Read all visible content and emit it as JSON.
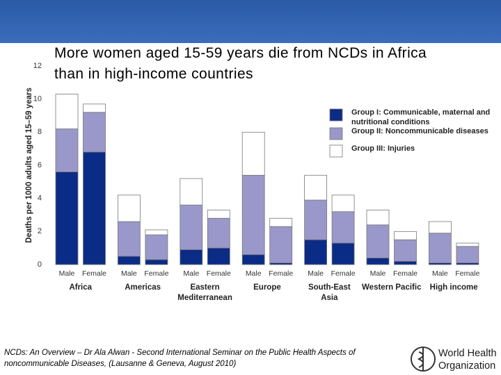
{
  "chart_data": {
    "type": "stacked-bar",
    "title": [
      "More women aged 15-59 years die from NCDs in Africa",
      "than in high-income countries"
    ],
    "ylabel": "Deaths per 1000 adults aged 15–59 years",
    "categories": [
      "Male",
      "Female",
      "Male",
      "Female",
      "Male",
      "Female",
      "Male",
      "Female",
      "Male",
      "Female",
      "Male",
      "Female",
      "Male",
      "Female"
    ],
    "groups": [
      [
        "Africa"
      ],
      [
        "Americas"
      ],
      [
        "Eastern",
        "Mediterranean"
      ],
      [
        "Europe"
      ],
      [
        "South-East",
        "Asia"
      ],
      [
        "Western Pacific"
      ],
      [
        "High income"
      ]
    ],
    "series": [
      {
        "name": "Group I: Communicable, maternal and nutritional conditions",
        "color": "#0b2c86",
        "values": [
          5.6,
          6.8,
          0.5,
          0.3,
          0.9,
          1.0,
          0.6,
          0.1,
          1.5,
          1.3,
          0.4,
          0.2,
          0.1,
          0.1
        ]
      },
      {
        "name": "Group II: Noncommunicable diseases",
        "color": "#9a98ca",
        "values": [
          2.6,
          2.4,
          2.1,
          1.5,
          2.7,
          1.8,
          4.8,
          2.2,
          2.4,
          1.9,
          2.0,
          1.3,
          1.8,
          1.0
        ]
      },
      {
        "name": "Group III: Injuries",
        "color": "#ffffff",
        "values": [
          2.1,
          0.5,
          1.6,
          0.3,
          1.6,
          0.5,
          2.6,
          0.5,
          1.5,
          1.0,
          0.9,
          0.5,
          0.7,
          0.2
        ]
      }
    ],
    "ylim": [
      0,
      12
    ],
    "yticks": [
      0,
      2,
      4,
      6,
      8,
      10,
      12
    ],
    "grid": false
  },
  "footer": {
    "citation": "NCDs: An Overview – Dr Ala Alwan - Second International Seminar on the Public Health Aspects of noncommunicable Diseases, (Lausanne & Geneva, August 2010)",
    "logo": [
      "World Health",
      "Organization"
    ]
  }
}
